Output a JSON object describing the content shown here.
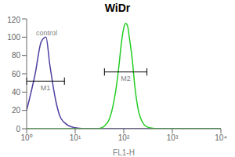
{
  "chart_data": {
    "type": "line",
    "title": "WiDr",
    "x_label": "FL1-H",
    "log": "x",
    "xlim": [
      1,
      10000
    ],
    "xticks": [
      {
        "value": 1,
        "label": "10⁰"
      },
      {
        "value": 10,
        "label": "10¹"
      },
      {
        "value": 100,
        "label": "10²"
      },
      {
        "value": 1000,
        "label": "10³"
      },
      {
        "value": 10000,
        "label": "10⁴"
      }
    ],
    "ylim": [
      0,
      120
    ],
    "yticks": [
      0,
      20,
      40,
      60,
      80,
      100,
      120
    ],
    "x": [
      1,
      1.5,
      2,
      2.5,
      3,
      4,
      5,
      7,
      10,
      15,
      20,
      30,
      40,
      50,
      60,
      70,
      80,
      90,
      100,
      110,
      120,
      130,
      150,
      170,
      200,
      250,
      300,
      400,
      600,
      1000,
      10000
    ],
    "series": [
      {
        "name": "control",
        "color": "#4b3fa0",
        "values": [
          20,
          60,
          95,
          100,
          70,
          30,
          12,
          4,
          1,
          0,
          0,
          0,
          0,
          0,
          0,
          0,
          0,
          0,
          0,
          0,
          0,
          0,
          0,
          0,
          0,
          0,
          0,
          0,
          0,
          0,
          0
        ]
      },
      {
        "color": "#22cc22",
        "values": [
          0,
          0,
          0,
          0,
          0,
          0,
          0,
          0,
          0,
          0,
          0,
          0,
          3,
          10,
          25,
          45,
          70,
          95,
          110,
          115,
          112,
          100,
          75,
          45,
          20,
          6,
          2,
          0.5,
          0,
          0,
          0
        ]
      }
    ],
    "annotations": [
      {
        "text": "control",
        "x": 1.3,
        "y": 105
      }
    ],
    "gates": [
      {
        "label": "M1",
        "x": [
          1,
          6
        ],
        "y": 52
      },
      {
        "label": "M2",
        "x": [
          40,
          300
        ],
        "y": 62
      }
    ]
  }
}
